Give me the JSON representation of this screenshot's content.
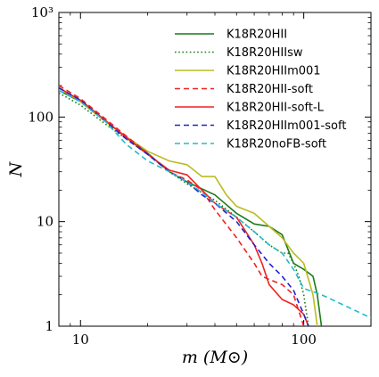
{
  "chart_data": {
    "type": "line",
    "xlabel": "m (M⊙)",
    "ylabel": "N",
    "xscale": "log",
    "yscale": "log",
    "xlim": [
      8,
      200
    ],
    "ylim": [
      1,
      1000
    ],
    "x_ticks": [
      {
        "value": 10,
        "label": "10"
      },
      {
        "value": 100,
        "label": "100"
      }
    ],
    "y_ticks": [
      {
        "value": 1,
        "label": "1"
      },
      {
        "value": 10,
        "label": "10"
      },
      {
        "value": 100,
        "label": "100"
      },
      {
        "value": 1000,
        "label": "10³"
      }
    ],
    "grid": false,
    "legend_position": "top-right",
    "series": [
      {
        "name": "K18R20HII",
        "color": "#1a7a1a",
        "dash": "solid",
        "x": [
          8,
          10,
          13,
          16,
          20,
          25,
          30,
          40,
          50,
          60,
          70,
          80,
          90,
          100,
          110,
          115,
          120
        ],
        "y": [
          180,
          140,
          90,
          65,
          45,
          30,
          24,
          18,
          12,
          9.5,
          9,
          7.5,
          4,
          3.5,
          3,
          2,
          1
        ]
      },
      {
        "name": "K18R20HIIsw",
        "color": "#1a7a1a",
        "dash": "dotted",
        "x": [
          8,
          10,
          13,
          16,
          20,
          25,
          30,
          40,
          50,
          60,
          70,
          80,
          85,
          90,
          95,
          100,
          105
        ],
        "y": [
          170,
          130,
          85,
          62,
          44,
          30,
          23,
          16,
          11,
          8,
          6,
          5,
          5,
          4,
          3,
          2,
          1
        ]
      },
      {
        "name": "K18R20HIIm001",
        "color": "#bbbb22",
        "dash": "solid",
        "x": [
          8,
          10,
          13,
          16,
          20,
          25,
          30,
          35,
          40,
          45,
          50,
          60,
          70,
          80,
          90,
          100,
          110,
          115
        ],
        "y": [
          190,
          140,
          90,
          65,
          47,
          38,
          35,
          27,
          27,
          18,
          14,
          12,
          9,
          7,
          5,
          4,
          2,
          1
        ]
      },
      {
        "name": "K18R20HII-soft",
        "color": "#ee2222",
        "dash": "dashed",
        "x": [
          8,
          10,
          13,
          16,
          20,
          25,
          30,
          35,
          40,
          50,
          60,
          65,
          70,
          80,
          90,
          100
        ],
        "y": [
          200,
          150,
          95,
          66,
          45,
          30,
          25,
          20,
          13,
          7,
          4,
          3,
          2.8,
          2.5,
          2,
          1
        ]
      },
      {
        "name": "K18R20HII-soft-L",
        "color": "#ee2222",
        "dash": "solid",
        "x": [
          8,
          10,
          13,
          16,
          20,
          25,
          30,
          35,
          40,
          50,
          60,
          65,
          70,
          80,
          90,
          100,
          105
        ],
        "y": [
          190,
          145,
          92,
          64,
          44,
          31,
          28,
          20,
          15,
          11,
          6,
          4,
          2.5,
          1.8,
          1.6,
          1.3,
          1
        ]
      },
      {
        "name": "K18R20HIIm001-soft",
        "color": "#2222cc",
        "dash": "dashed",
        "x": [
          8,
          10,
          13,
          16,
          20,
          25,
          30,
          35,
          40,
          50,
          60,
          70,
          80,
          90,
          100,
          105
        ],
        "y": [
          190,
          145,
          90,
          62,
          44,
          30,
          24,
          18,
          15,
          10,
          6,
          4,
          3,
          2.2,
          1.3,
          1
        ]
      },
      {
        "name": "K18R20noFB-soft",
        "color": "#22bbcc",
        "dash": "dashed",
        "x": [
          8,
          10,
          13,
          16,
          20,
          25,
          30,
          35,
          40,
          50,
          60,
          70,
          80,
          90,
          100,
          120,
          150,
          200
        ],
        "y": [
          180,
          140,
          90,
          55,
          38,
          30,
          24,
          19,
          15,
          11,
          8,
          6,
          5,
          3.5,
          2.3,
          2,
          1.6,
          1.2
        ]
      }
    ]
  }
}
